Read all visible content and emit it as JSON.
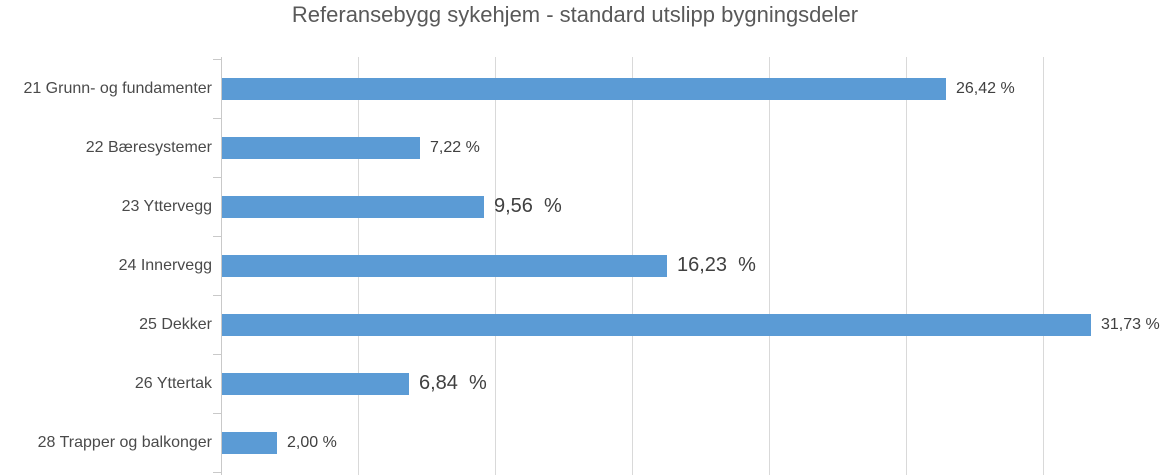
{
  "chart_data": {
    "type": "bar",
    "orientation": "horizontal",
    "title": "Referansebygg sykehjem - standard utslipp bygningsdeler",
    "categories": [
      "21 Grunn- og fundamenter",
      "22 Bæresystemer",
      "23 Yttervegg",
      "24 Innervegg",
      "25 Dekker",
      "26 Yttertak",
      "28 Trapper og balkonger"
    ],
    "values": [
      26.42,
      7.22,
      9.56,
      16.23,
      31.73,
      6.84,
      2.0
    ],
    "value_labels": [
      "26,42 %",
      "7,22 %",
      "9,56  %",
      "16,23  %",
      "31,73 %",
      "6,84  %",
      "2,00 %"
    ],
    "value_label_large": [
      false,
      false,
      true,
      true,
      false,
      true,
      false
    ],
    "xlabel": "",
    "ylabel": "",
    "xlim": [
      0,
      34.4
    ],
    "gridline_step": 5,
    "grid": "vertical-only",
    "x_tick_labels_visible": false,
    "legend": "none",
    "colors": {
      "bar": "#5b9bd5",
      "gridline": "#d9d9d9",
      "axis": "#c9c9c9",
      "title_text": "#595959",
      "label_text": "#4a4a4a",
      "value_text": "#404040"
    }
  }
}
